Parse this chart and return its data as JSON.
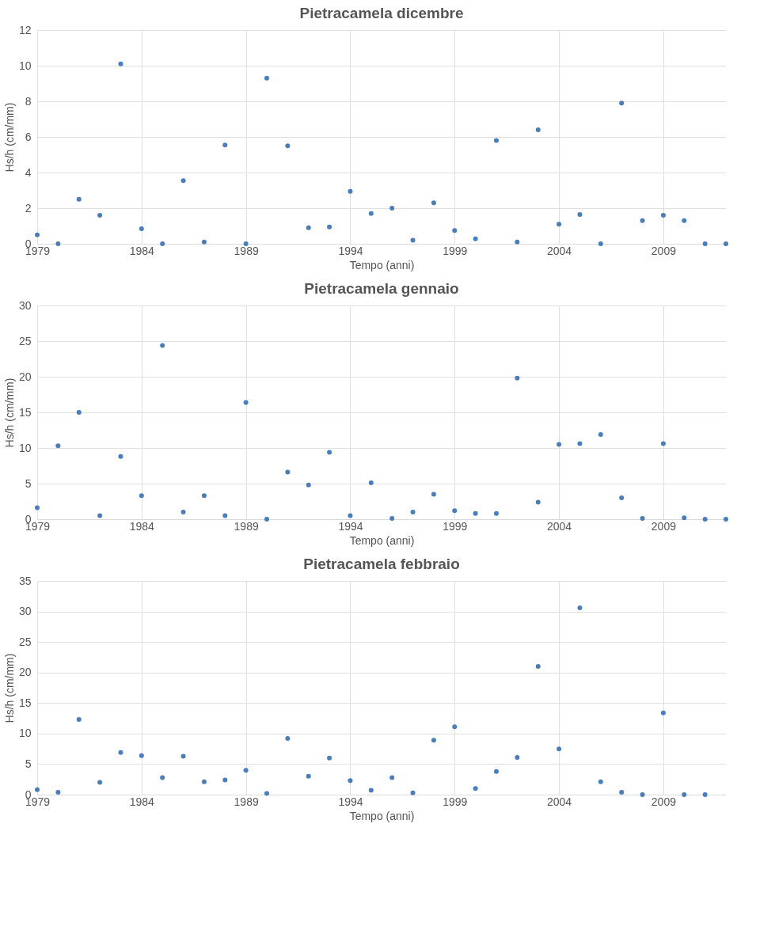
{
  "chart_data": [
    {
      "type": "scatter",
      "title": "Pietracamela dicembre",
      "xlabel": "Tempo (anni)",
      "ylabel": "Hs/h (cm/mm)",
      "xlim": [
        1979,
        2012
      ],
      "xticks": [
        1979,
        1984,
        1989,
        1994,
        1999,
        2004,
        2009
      ],
      "ylim": [
        0,
        12
      ],
      "yticks": [
        0,
        2,
        4,
        6,
        8,
        10,
        12
      ],
      "grid": true,
      "marker": "circle",
      "x": [
        1979,
        1980,
        1981,
        1982,
        1983,
        1984,
        1985,
        1986,
        1987,
        1988,
        1989,
        1990,
        1991,
        1992,
        1993,
        1994,
        1995,
        1996,
        1997,
        1998,
        1999,
        2000,
        2001,
        2002,
        2003,
        2004,
        2005,
        2006,
        2007,
        2008,
        2009,
        2010,
        2011,
        2012
      ],
      "series": [
        {
          "color": "#4a7ebb",
          "values": [
            0.5,
            0,
            2.5,
            1.6,
            10.1,
            0.85,
            0,
            3.55,
            0.1,
            5.55,
            0,
            9.3,
            5.5,
            0.9,
            0.95,
            2.95,
            1.7,
            2.0,
            0.2,
            2.3,
            0.75,
            0.28,
            5.8,
            0.1,
            6.4,
            1.1,
            1.65,
            0,
            7.9,
            1.3,
            1.6,
            1.3,
            0,
            0
          ]
        }
      ]
    },
    {
      "type": "scatter",
      "title": "Pietracamela gennaio",
      "xlabel": "Tempo (anni)",
      "ylabel": "Hs/h (cm/mm)",
      "xlim": [
        1979,
        2012
      ],
      "xticks": [
        1979,
        1984,
        1989,
        1994,
        1999,
        2004,
        2009
      ],
      "ylim": [
        0,
        30
      ],
      "yticks": [
        0,
        5,
        10,
        15,
        20,
        25,
        30
      ],
      "grid": true,
      "marker": "circle",
      "x": [
        1979,
        1980,
        1981,
        1982,
        1983,
        1984,
        1985,
        1986,
        1987,
        1988,
        1989,
        1990,
        1991,
        1992,
        1993,
        1994,
        1995,
        1996,
        1997,
        1998,
        1999,
        2000,
        2001,
        2002,
        2003,
        2004,
        2005,
        2006,
        2007,
        2008,
        2009,
        2010,
        2011,
        2012
      ],
      "series": [
        {
          "color": "#4a7ebb",
          "values": [
            1.6,
            10.3,
            15.0,
            0.5,
            8.8,
            3.3,
            24.4,
            1.0,
            3.3,
            0.5,
            16.4,
            0,
            6.6,
            4.8,
            9.4,
            0.5,
            5.1,
            0.1,
            1.0,
            3.5,
            1.2,
            0.8,
            0.8,
            19.8,
            2.4,
            10.5,
            10.6,
            11.9,
            3.0,
            0.1,
            10.6,
            0.2,
            0,
            0
          ]
        }
      ]
    },
    {
      "type": "scatter",
      "title": "Pietracamela febbraio",
      "xlabel": "Tempo (anni)",
      "ylabel": "Hs/h (cm/mm)",
      "xlim": [
        1979,
        2012
      ],
      "xticks": [
        1979,
        1984,
        1989,
        1994,
        1999,
        2004,
        2009
      ],
      "ylim": [
        0,
        35
      ],
      "yticks": [
        0,
        5,
        10,
        15,
        20,
        25,
        30,
        35
      ],
      "grid": true,
      "marker": "circle",
      "x": [
        1979,
        1980,
        1981,
        1982,
        1983,
        1984,
        1985,
        1986,
        1987,
        1988,
        1989,
        1990,
        1991,
        1992,
        1993,
        1994,
        1995,
        1996,
        1997,
        1998,
        1999,
        2000,
        2001,
        2002,
        2003,
        2004,
        2005,
        2006,
        2007,
        2008,
        2009,
        2010,
        2011
      ],
      "series": [
        {
          "color": "#4a7ebb",
          "values": [
            0.8,
            0.4,
            12.3,
            2.0,
            6.9,
            6.4,
            2.8,
            6.3,
            2.1,
            2.4,
            4.0,
            0.2,
            9.2,
            3.0,
            6.0,
            2.3,
            0.7,
            2.8,
            0.3,
            8.9,
            11.1,
            1.0,
            3.8,
            6.1,
            21.0,
            7.5,
            30.6,
            2.1,
            0.4,
            0,
            13.4,
            0,
            0
          ]
        }
      ]
    }
  ]
}
